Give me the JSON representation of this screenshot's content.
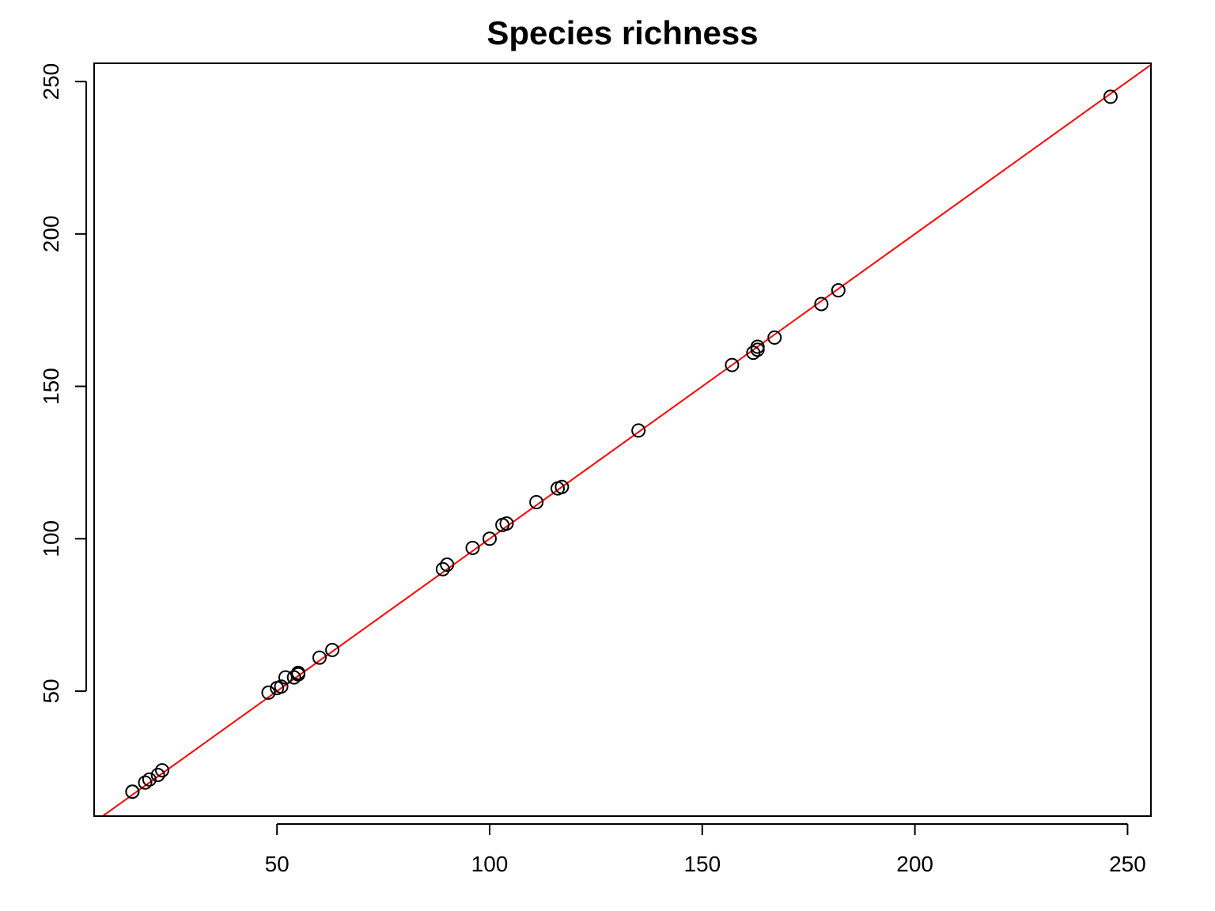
{
  "chart_data": {
    "type": "scatter",
    "title": "Species richness",
    "xlabel": "",
    "ylabel": "",
    "xlim": [
      7,
      255.5
    ],
    "ylim": [
      9,
      256
    ],
    "xticks": [
      50,
      100,
      150,
      200,
      250
    ],
    "yticks": [
      50,
      100,
      150,
      200,
      250
    ],
    "grid": false,
    "point_color": "#000000",
    "line_color": "#ff0000",
    "reference_line": {
      "intercept": 0,
      "slope": 1
    },
    "x": [
      16,
      16,
      19,
      20,
      22,
      23,
      48,
      50,
      51,
      52,
      54,
      55,
      55,
      60,
      63,
      89,
      90,
      96,
      100,
      103,
      104,
      111,
      116,
      117,
      135,
      157,
      162,
      163,
      163,
      167,
      178,
      182,
      246
    ],
    "y": [
      17,
      17,
      20,
      21,
      22.5,
      24,
      49.5,
      51,
      51.5,
      54.5,
      54.5,
      55.5,
      56,
      61,
      63.5,
      90,
      91.5,
      97,
      100,
      104.5,
      105,
      112,
      116.5,
      117,
      135.5,
      157,
      161,
      162,
      163,
      166,
      177,
      181.5,
      245
    ]
  }
}
